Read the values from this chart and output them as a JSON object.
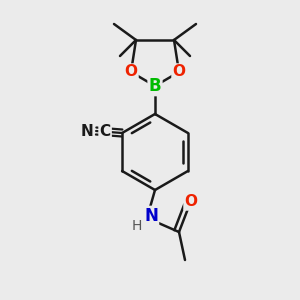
{
  "bg": "#ebebeb",
  "bond_color": "#1a1a1a",
  "bond_lw": 1.8,
  "fig_w": 3.0,
  "fig_h": 3.0,
  "dpi": 100,
  "colors": {
    "B": "#00bb00",
    "O": "#ee2200",
    "N": "#0000cc",
    "C": "#1a1a1a",
    "H": "#555555"
  }
}
